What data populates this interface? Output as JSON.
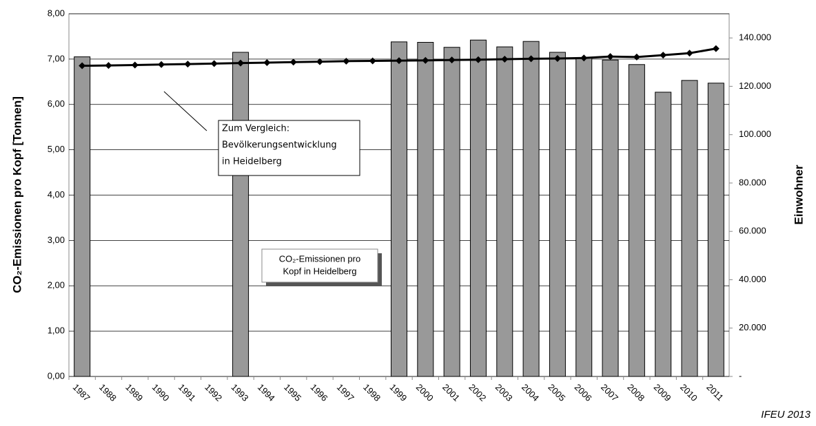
{
  "chart_data": {
    "type": "bar_line",
    "y_label": "CO₂-Emissionen pro Kopf [Tonnen]",
    "y2_label": "Einwohner",
    "source": "IFEU 2013",
    "categories": [
      "1987",
      "1988",
      "1989",
      "1990",
      "1991",
      "1992",
      "1993",
      "1994",
      "1995",
      "1996",
      "1997",
      "1998",
      "1999",
      "2000",
      "2001",
      "2002",
      "2003",
      "2004",
      "2005",
      "2006",
      "2007",
      "2008",
      "2009",
      "2010",
      "2011"
    ],
    "series": [
      {
        "type": "bar",
        "color": "#999999",
        "values": [
          7.05,
          null,
          null,
          null,
          null,
          null,
          7.15,
          null,
          null,
          null,
          null,
          null,
          7.38,
          7.37,
          7.26,
          7.42,
          7.27,
          7.39,
          7.15,
          7.03,
          6.98,
          6.88,
          6.27,
          6.53,
          6.47
        ]
      },
      {
        "type": "line",
        "axis": "y2",
        "color": "#000000",
        "values": [
          128500,
          128600,
          128800,
          129000,
          129200,
          129400,
          129600,
          129800,
          130000,
          130200,
          130400,
          130500,
          130600,
          130700,
          130900,
          131000,
          131200,
          131400,
          131500,
          131700,
          132300,
          132100,
          132900,
          133700,
          135600
        ]
      }
    ],
    "ylim": [
      0,
      8
    ],
    "yticks": [
      {
        "value": 0,
        "label": "0,00"
      },
      {
        "value": 1,
        "label": "1,00"
      },
      {
        "value": 2,
        "label": "2,00"
      },
      {
        "value": 3,
        "label": "3,00"
      },
      {
        "value": 4,
        "label": "4,00"
      },
      {
        "value": 5,
        "label": "5,00"
      },
      {
        "value": 6,
        "label": "6,00"
      },
      {
        "value": 7,
        "label": "7,00"
      },
      {
        "value": 8,
        "label": "8,00"
      }
    ],
    "y2lim": [
      0,
      150000
    ],
    "y2ticks": [
      {
        "value": 0,
        "label": "-"
      },
      {
        "value": 20000,
        "label": "20.000"
      },
      {
        "value": 40000,
        "label": "40.000"
      },
      {
        "value": 60000,
        "label": "60.000"
      },
      {
        "value": 80000,
        "label": "80.000"
      },
      {
        "value": 100000,
        "label": "100.000"
      },
      {
        "value": 120000,
        "label": "120.000"
      },
      {
        "value": 140000,
        "label": "140.000"
      }
    ],
    "grid": true,
    "annotations": [
      {
        "lines": [
          "Zum Vergleich:",
          "Bevölkerungsentwicklung",
          "in Heidelberg"
        ]
      },
      {
        "lines": [
          "CO₂-Emissionen pro",
          "Kopf in Heidelberg"
        ]
      }
    ]
  }
}
